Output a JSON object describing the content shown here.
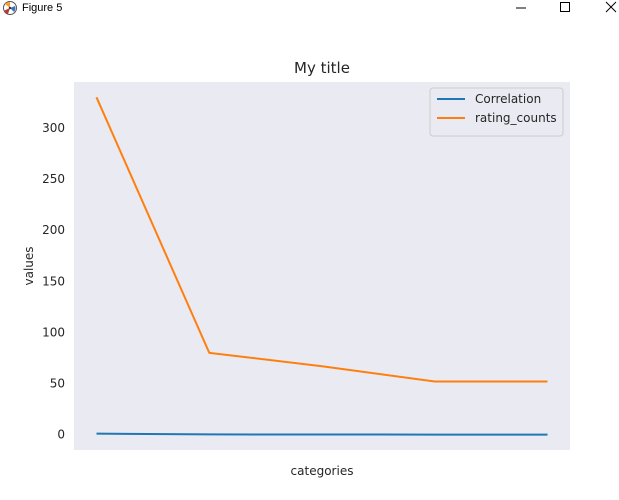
{
  "window": {
    "title": "Figure 5",
    "icon": "matplotlib-icon",
    "controls": [
      "minimize-icon",
      "maximize-icon",
      "close-icon"
    ]
  },
  "chart_data": {
    "type": "line",
    "title": "My title",
    "xlabel": "categories",
    "ylabel": "values",
    "x": [
      0,
      1,
      2,
      3,
      4
    ],
    "xticks_visible": false,
    "yticks": [
      0,
      50,
      100,
      150,
      200,
      250,
      300
    ],
    "ylim": [
      -15,
      345
    ],
    "xlim": [
      -0.2,
      4.2
    ],
    "grid": false,
    "background": "#eaeaf2",
    "legend_position": "top-right",
    "series": [
      {
        "name": "Correlation",
        "color": "#1f77b4",
        "values": [
          1,
          0.3,
          0.2,
          0.1,
          0.1
        ]
      },
      {
        "name": "rating_counts",
        "color": "#ff7f0e",
        "values": [
          330,
          80,
          67,
          52,
          52
        ]
      }
    ]
  }
}
